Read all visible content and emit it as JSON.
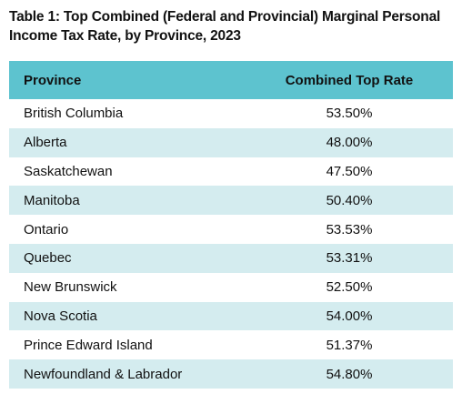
{
  "title": "Table 1: Top Combined (Federal and Provincial) Marginal Personal Income Tax Rate, by Province, 2023",
  "colors": {
    "header_bg": "#5dc3cf",
    "stripe_bg": "#d4ecef",
    "text": "#111111"
  },
  "chart_data": {
    "type": "table",
    "title": "Table 1: Top Combined (Federal and Provincial) Marginal Personal Income Tax Rate, by Province, 2023",
    "columns": [
      "Province",
      "Combined Top Rate"
    ],
    "rows": [
      {
        "province": "British Columbia",
        "rate": "53.50%"
      },
      {
        "province": "Alberta",
        "rate": "48.00%"
      },
      {
        "province": "Saskatchewan",
        "rate": "47.50%"
      },
      {
        "province": "Manitoba",
        "rate": "50.40%"
      },
      {
        "province": "Ontario",
        "rate": "53.53%"
      },
      {
        "province": "Quebec",
        "rate": "53.31%"
      },
      {
        "province": "New Brunswick",
        "rate": "52.50%"
      },
      {
        "province": "Nova Scotia",
        "rate": "54.00%"
      },
      {
        "province": "Prince Edward Island",
        "rate": "51.37%"
      },
      {
        "province": "Newfoundland & Labrador",
        "rate": "54.80%"
      }
    ]
  }
}
